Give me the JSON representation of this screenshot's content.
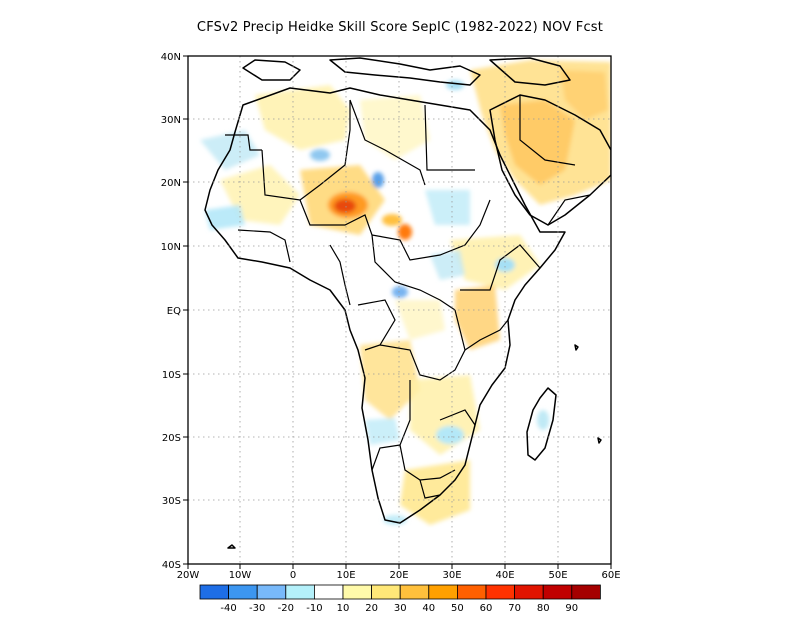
{
  "title": "CFSv2 Precip Heidke Skill Score SepIC (1982-2022) NOV Fcst",
  "lon_ticks": [
    "20W",
    "10W",
    "0",
    "10E",
    "20E",
    "30E",
    "40E",
    "50E",
    "60E"
  ],
  "lat_ticks": [
    "40N",
    "30N",
    "20N",
    "10N",
    "EQ",
    "10S",
    "20S",
    "30S",
    "40S"
  ],
  "colorbar": {
    "labels": [
      "-40",
      "-30",
      "-20",
      "-10",
      "10",
      "20",
      "30",
      "40",
      "50",
      "60",
      "70",
      "80",
      "90"
    ],
    "colors": [
      "#1e6ee6",
      "#3c96f0",
      "#78b9fa",
      "#b4f0fa",
      "#ffffff",
      "#fffaaa",
      "#ffe878",
      "#ffc03c",
      "#ffa000",
      "#ff6000",
      "#ff3200",
      "#e11400",
      "#c00000",
      "#a50000"
    ]
  },
  "map_extent": {
    "lon": [
      -20,
      60
    ],
    "lat": [
      -40,
      40
    ]
  }
}
